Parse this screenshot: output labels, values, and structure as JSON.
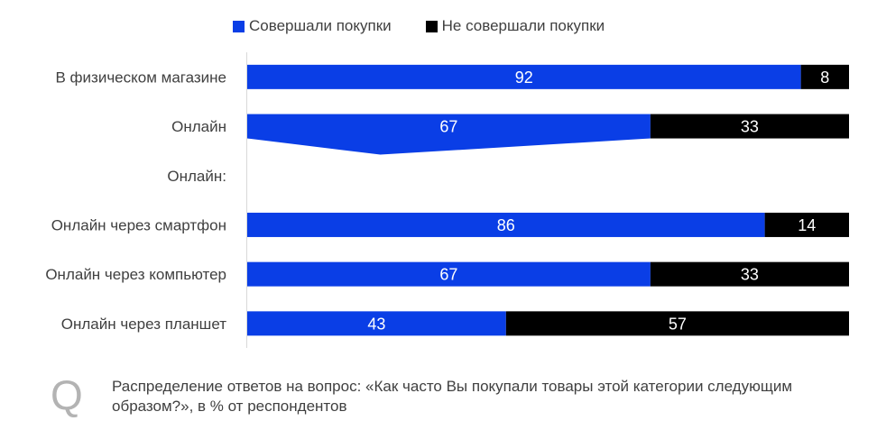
{
  "legend": [
    {
      "label": "Совершали покупки",
      "color": "#0a3ee6"
    },
    {
      "label": "Не совершали покупки",
      "color": "#000000"
    }
  ],
  "chart_data": {
    "type": "bar",
    "orientation": "horizontal",
    "stacked": true,
    "categories": [
      "В физическом магазине",
      "Онлайн",
      "Онлайн:",
      "Онлайн через смартфон",
      "Онлайн через компьютер",
      "Онлайн через планшет"
    ],
    "series": [
      {
        "name": "Совершали покупки",
        "color": "#0a3ee6",
        "values": [
          92,
          67,
          null,
          86,
          67,
          43
        ]
      },
      {
        "name": "Не совершали покупки",
        "color": "#000000",
        "values": [
          8,
          33,
          null,
          14,
          33,
          57
        ]
      }
    ],
    "xlim": [
      0,
      100
    ],
    "grid": false,
    "legend_position": "top"
  },
  "note": {
    "icon": "Q",
    "text": "Распределение ответов на вопрос: «Как часто Вы покупали товары этой категории следующим образом?», в % от респондентов"
  }
}
